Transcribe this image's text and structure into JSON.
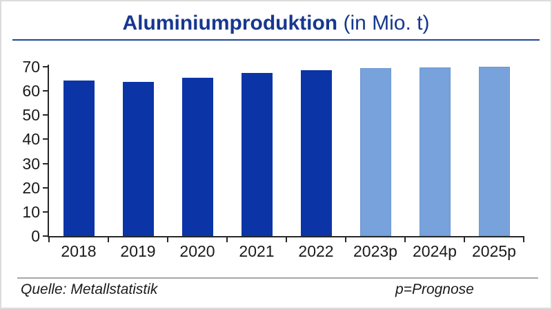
{
  "title": {
    "main": "Aluminiumproduktion",
    "suffix": " (in Mio. t)"
  },
  "chart_data": {
    "type": "bar",
    "title": "Aluminiumproduktion (in Mio. t)",
    "categories": [
      "2018",
      "2019",
      "2020",
      "2021",
      "2022",
      "2023p",
      "2024p",
      "2025p"
    ],
    "series": [
      {
        "name": "Aluminiumproduktion",
        "values": [
          64.2,
          63.6,
          65.4,
          67.3,
          68.5,
          69.5,
          69.8,
          70.0
        ]
      }
    ],
    "forecast_start_index": 5,
    "xlabel": "",
    "ylabel": "",
    "ylim": [
      0,
      70
    ],
    "yticks": [
      0,
      10,
      20,
      30,
      40,
      50,
      60,
      70
    ],
    "grid": false,
    "legend": false,
    "bar_colors": {
      "actual": "#0B35A6",
      "forecast": "#78A2DB"
    }
  },
  "footer": {
    "source": "Quelle: Metallstatistik",
    "note": "p=Prognose"
  },
  "colors": {
    "title": "#17378F",
    "underline": "#1F449B",
    "axis": "#262626",
    "divider": "#A6A6A6"
  }
}
